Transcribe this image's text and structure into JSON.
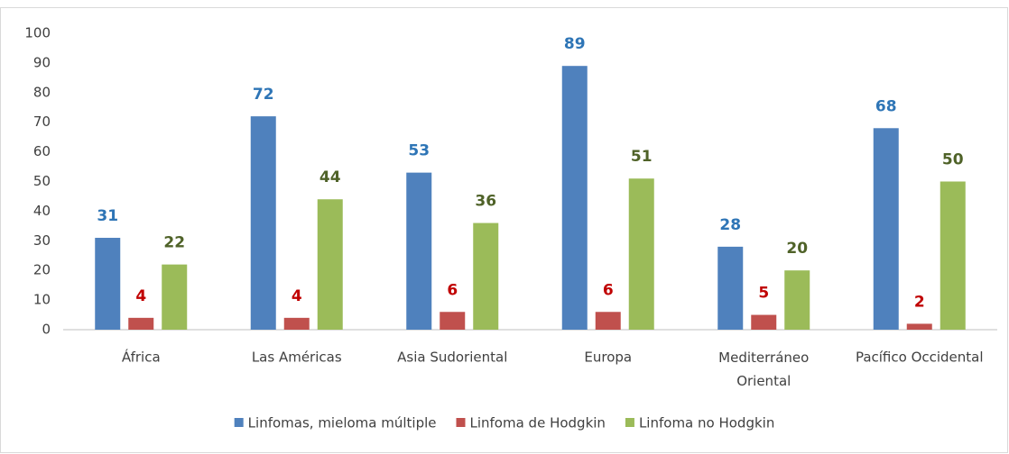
{
  "chart_data": {
    "type": "bar",
    "categories": [
      "África",
      "Las Américas",
      "Asia Sudoriental",
      "Europa",
      "Mediterráneo Oriental",
      "Pacífico Occidental"
    ],
    "series": [
      {
        "name": "Linfomas, mieloma múltiple",
        "color": "#4f81bd",
        "label_color": "#2e75b6",
        "values": [
          31,
          72,
          53,
          89,
          28,
          68
        ]
      },
      {
        "name": "Linfoma de Hodgkin",
        "color": "#c0504d",
        "label_color": "#c00000",
        "values": [
          4,
          4,
          6,
          6,
          5,
          2
        ]
      },
      {
        "name": "Linfoma no Hodgkin",
        "color": "#9bbb59",
        "label_color": "#4f6228",
        "values": [
          22,
          44,
          36,
          51,
          20,
          50
        ]
      }
    ],
    "ylim": [
      0,
      100
    ],
    "yticks": [
      0,
      10,
      20,
      30,
      40,
      50,
      60,
      70,
      80,
      90,
      100
    ],
    "grid": false,
    "legend": "bottom"
  }
}
